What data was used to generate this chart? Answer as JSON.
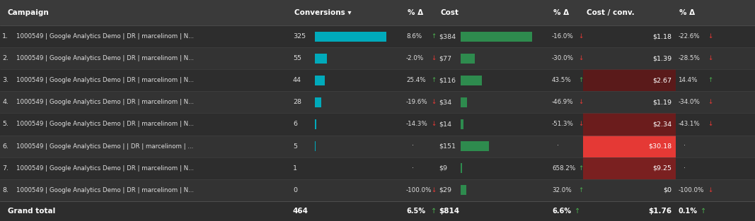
{
  "bg_color": "#2d2d2d",
  "header_bg": "#3a3a3a",
  "row_bg_odd": "#2d2d2d",
  "row_bg_even": "#333333",
  "footer_bg": "#2d2d2d",
  "border_color": "#555555",
  "text_color": "#e0e0e0",
  "header_text_color": "#ffffff",
  "conv_bar_color": "#00aabb",
  "cost_bar_color": "#2e8b4e",
  "up_arrow_color": "#4caf50",
  "down_arrow_color": "#e53935",
  "columns": [
    "Campaign",
    "Conversions",
    "% Δ",
    "Cost",
    "% Δ",
    "Cost / conv.",
    "% Δ"
  ],
  "col_starts": [
    0.0,
    0.385,
    0.535,
    0.578,
    0.728,
    0.772,
    0.895
  ],
  "col_ends": [
    0.385,
    0.535,
    0.578,
    0.728,
    0.772,
    0.895,
    1.0
  ],
  "rows": [
    {
      "num": "1.",
      "campaign": "1000549 | Google Analytics Demo | DR | marcelinom | N...",
      "conversions": 325,
      "conv_pct": "8.6%",
      "conv_pct_up": true,
      "cost": "$384",
      "cost_pct": "-16.0%",
      "cost_pct_up": false,
      "cost_conv": "$1.18",
      "cost_conv_pct": "-22.6%",
      "cost_conv_pct_up": false,
      "cost_conv_heat_color": null
    },
    {
      "num": "2.",
      "campaign": "1000549 | Google Analytics Demo | DR | marcelinom | N...",
      "conversions": 55,
      "conv_pct": "-2.0%",
      "conv_pct_up": false,
      "cost": "$77",
      "cost_pct": "-30.0%",
      "cost_pct_up": false,
      "cost_conv": "$1.39",
      "cost_conv_pct": "-28.5%",
      "cost_conv_pct_up": false,
      "cost_conv_heat_color": null
    },
    {
      "num": "3.",
      "campaign": "1000549 | Google Analytics Demo | DR | marcelinom | N...",
      "conversions": 44,
      "conv_pct": "25.4%",
      "conv_pct_up": true,
      "cost": "$116",
      "cost_pct": "43.5%",
      "cost_pct_up": true,
      "cost_conv": "$2.67",
      "cost_conv_pct": "14.4%",
      "cost_conv_pct_up": true,
      "cost_conv_heat_color": "#5a1a1a"
    },
    {
      "num": "4.",
      "campaign": "1000549 | Google Analytics Demo | DR | marcelinom | N...",
      "conversions": 28,
      "conv_pct": "-19.6%",
      "conv_pct_up": false,
      "cost": "$34",
      "cost_pct": "-46.9%",
      "cost_pct_up": false,
      "cost_conv": "$1.19",
      "cost_conv_pct": "-34.0%",
      "cost_conv_pct_up": false,
      "cost_conv_heat_color": null
    },
    {
      "num": "5.",
      "campaign": "1000549 | Google Analytics Demo | DR | marcelinom | N...",
      "conversions": 6,
      "conv_pct": "-14.3%",
      "conv_pct_up": false,
      "cost": "$14",
      "cost_pct": "-51.3%",
      "cost_pct_up": false,
      "cost_conv": "$2.34",
      "cost_conv_pct": "-43.1%",
      "cost_conv_pct_up": false,
      "cost_conv_heat_color": "#6b1c1c"
    },
    {
      "num": "6.",
      "campaign": "1000549 | Google Analytics Demo | | DR | marcelinom | ...",
      "conversions": 5,
      "conv_pct": null,
      "conv_pct_up": null,
      "cost": "$151",
      "cost_pct": null,
      "cost_pct_up": null,
      "cost_conv": "$30.18",
      "cost_conv_pct": null,
      "cost_conv_pct_up": null,
      "cost_conv_heat_color": "#e53935"
    },
    {
      "num": "7.",
      "campaign": "1000549 | Google Analytics Demo | DR | marcelinom | N...",
      "conversions": 1,
      "conv_pct": null,
      "conv_pct_up": null,
      "cost": "$9",
      "cost_pct": "658.2%",
      "cost_pct_up": true,
      "cost_conv": "$9.25",
      "cost_conv_pct": null,
      "cost_conv_pct_up": null,
      "cost_conv_heat_color": "#7a2020"
    },
    {
      "num": "8.",
      "campaign": "1000549 | Google Analytics Demo | DR | marcelinom | N...",
      "conversions": 0,
      "conv_pct": "-100.0%",
      "conv_pct_up": false,
      "cost": "$29",
      "cost_pct": "32.0%",
      "cost_pct_up": true,
      "cost_conv": "$0",
      "cost_conv_pct": "-100.0%",
      "cost_conv_pct_up": false,
      "cost_conv_heat_color": null
    }
  ],
  "grand_total": {
    "conversions": "464",
    "conv_pct": "6.5%",
    "conv_pct_up": true,
    "cost": "$814",
    "cost_pct": "6.6%",
    "cost_pct_up": true,
    "cost_conv": "$1.76",
    "cost_conv_pct": "0.1%",
    "cost_conv_pct_up": true
  },
  "max_conversions": 325,
  "max_cost_val": 384,
  "cost_values": [
    384,
    77,
    116,
    34,
    14,
    151,
    9,
    29
  ]
}
